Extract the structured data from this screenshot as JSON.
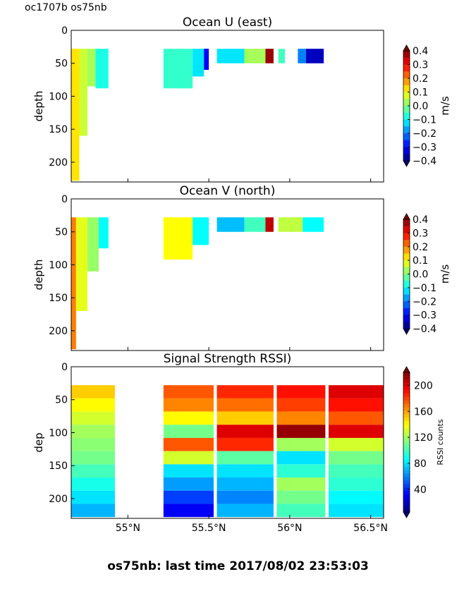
{
  "corner_label": "oc1707b os75nb",
  "footer": "os75nb: last time 2017/08/02 23:53:03",
  "chart_data": [
    {
      "type": "heatmap",
      "title": "Ocean U (east)",
      "ylabel": "depth",
      "xlim": [
        54.65,
        56.58
      ],
      "ylim": [
        230,
        0
      ],
      "yticks": [
        0,
        50,
        100,
        150,
        200
      ],
      "colorbar": {
        "label": "m/s",
        "ticks": [
          "0.4",
          "0.3",
          "0.2",
          "0.1",
          "0.0",
          "−0.1",
          "−0.2",
          "−0.3",
          "−0.4"
        ]
      },
      "cells": [
        {
          "x0": 54.65,
          "x1": 54.7,
          "y0": 28,
          "y1": 228,
          "v": 0.12
        },
        {
          "x0": 54.7,
          "x1": 54.75,
          "y0": 28,
          "y1": 160,
          "v": 0.06
        },
        {
          "x0": 54.75,
          "x1": 54.8,
          "y0": 28,
          "y1": 85,
          "v": 0.03
        },
        {
          "x0": 54.8,
          "x1": 54.88,
          "y0": 28,
          "y1": 88,
          "v": -0.08
        },
        {
          "x0": 55.22,
          "x1": 55.4,
          "y0": 28,
          "y1": 88,
          "v": -0.06
        },
        {
          "x0": 55.4,
          "x1": 55.47,
          "y0": 28,
          "y1": 70,
          "v": -0.12
        },
        {
          "x0": 55.47,
          "x1": 55.5,
          "y0": 28,
          "y1": 60,
          "v": -0.3
        },
        {
          "x0": 55.55,
          "x1": 55.72,
          "y0": 28,
          "y1": 50,
          "v": -0.12
        },
        {
          "x0": 55.72,
          "x1": 55.85,
          "y0": 28,
          "y1": 50,
          "v": 0.03
        },
        {
          "x0": 55.85,
          "x1": 55.9,
          "y0": 28,
          "y1": 50,
          "v": 0.38
        },
        {
          "x0": 55.93,
          "x1": 55.97,
          "y0": 28,
          "y1": 50,
          "v": -0.05
        },
        {
          "x0": 56.05,
          "x1": 56.1,
          "y0": 28,
          "y1": 50,
          "v": -0.2
        },
        {
          "x0": 56.1,
          "x1": 56.21,
          "y0": 28,
          "y1": 50,
          "v": -0.35
        }
      ]
    },
    {
      "type": "heatmap",
      "title": "Ocean V (north)",
      "ylabel": "depth",
      "xlim": [
        54.65,
        56.58
      ],
      "ylim": [
        230,
        0
      ],
      "yticks": [
        0,
        50,
        100,
        150,
        200
      ],
      "colorbar": {
        "label": "m/s",
        "ticks": [
          "0.4",
          "0.3",
          "0.2",
          "0.1",
          "0.0",
          "−0.1",
          "−0.2",
          "−0.3",
          "−0.4"
        ]
      },
      "cells": [
        {
          "x0": 54.65,
          "x1": 54.68,
          "y0": 28,
          "y1": 228,
          "v": 0.2
        },
        {
          "x0": 54.68,
          "x1": 54.75,
          "y0": 28,
          "y1": 170,
          "v": 0.08
        },
        {
          "x0": 54.75,
          "x1": 54.82,
          "y0": 28,
          "y1": 110,
          "v": 0.02
        },
        {
          "x0": 54.82,
          "x1": 54.88,
          "y0": 28,
          "y1": 75,
          "v": -0.1
        },
        {
          "x0": 55.22,
          "x1": 55.4,
          "y0": 28,
          "y1": 92,
          "v": 0.1
        },
        {
          "x0": 55.4,
          "x1": 55.5,
          "y0": 28,
          "y1": 70,
          "v": -0.1
        },
        {
          "x0": 55.55,
          "x1": 55.72,
          "y0": 28,
          "y1": 50,
          "v": -0.15
        },
        {
          "x0": 55.72,
          "x1": 55.85,
          "y0": 28,
          "y1": 50,
          "v": -0.05
        },
        {
          "x0": 55.85,
          "x1": 55.9,
          "y0": 28,
          "y1": 50,
          "v": 0.35
        },
        {
          "x0": 55.93,
          "x1": 56.08,
          "y0": 28,
          "y1": 50,
          "v": 0.05
        },
        {
          "x0": 56.08,
          "x1": 56.21,
          "y0": 28,
          "y1": 50,
          "v": -0.1
        }
      ]
    },
    {
      "type": "heatmap",
      "title": "Signal Strength RSSI)",
      "ylabel": "dep",
      "xlim": [
        54.65,
        56.58
      ],
      "ylim": [
        230,
        0
      ],
      "yticks": [
        0,
        50,
        100,
        150,
        200
      ],
      "xticks": [
        "55°N",
        "55.5°N",
        "56°N",
        "56.5°N"
      ],
      "xtick_values": [
        55.0,
        55.5,
        56.0,
        56.5
      ],
      "colorbar": {
        "label": "RSSI counts",
        "ticks": [
          "200",
          "160",
          "120",
          "80",
          "40"
        ],
        "range": [
          5,
          220
        ]
      },
      "columns": [
        {
          "x0": 54.65,
          "x1": 54.92,
          "values": [
            150,
            140,
            130,
            120,
            115,
            110,
            100,
            90,
            80,
            70
          ]
        },
        {
          "x0": 55.22,
          "x1": 55.53,
          "values": [
            175,
            165,
            140,
            110,
            175,
            130,
            80,
            65,
            45,
            30
          ]
        },
        {
          "x0": 55.55,
          "x1": 55.9,
          "values": [
            185,
            170,
            150,
            200,
            185,
            105,
            80,
            70,
            60,
            70
          ]
        },
        {
          "x0": 55.92,
          "x1": 56.22,
          "values": [
            190,
            180,
            165,
            215,
            120,
            80,
            95,
            120,
            110,
            100
          ]
        },
        {
          "x0": 56.24,
          "x1": 56.58,
          "values": [
            200,
            190,
            175,
            200,
            130,
            110,
            100,
            95,
            85,
            80
          ]
        }
      ]
    }
  ]
}
